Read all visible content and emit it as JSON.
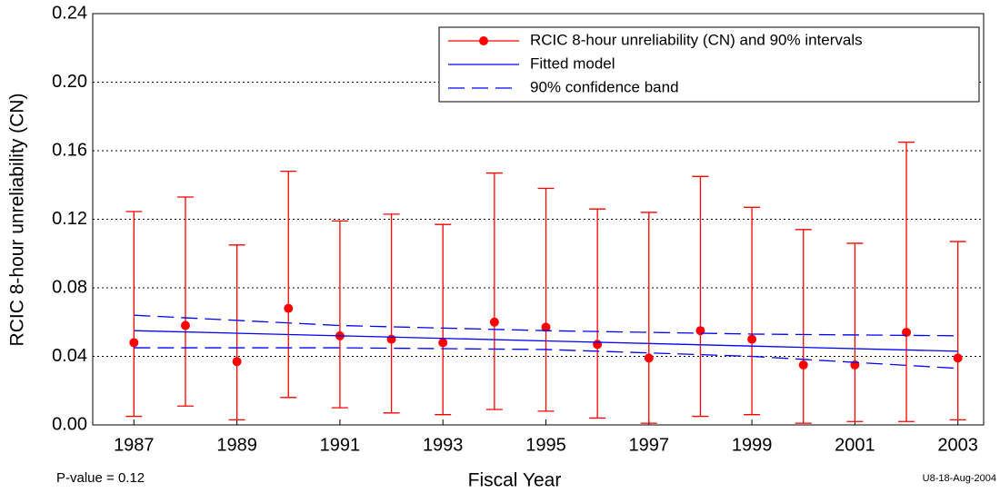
{
  "chart_data": {
    "type": "errorbar",
    "xlabel": "Fiscal Year",
    "ylabel": "RCIC 8-hour unreliability (CN)",
    "annotations": [
      "P-value = 0.12",
      "U8-18-Aug-2004"
    ],
    "xlim": [
      1986.2,
      2003.5
    ],
    "ylim": [
      0,
      0.24
    ],
    "xticks": [
      1987,
      1989,
      1991,
      1993,
      1995,
      1997,
      1999,
      2001,
      2003
    ],
    "yticks": [
      {
        "value": 0,
        "label": "0.00"
      },
      {
        "value": 0.04,
        "label": "0.04"
      },
      {
        "value": 0.08,
        "label": "0.08"
      },
      {
        "value": 0.12,
        "label": "0.12"
      },
      {
        "value": 0.16,
        "label": "0.16"
      },
      {
        "value": 0.2,
        "label": "0.20"
      },
      {
        "value": 0.24,
        "label": "0.24"
      }
    ],
    "grid": true,
    "legend": "top-right",
    "series": [
      {
        "name": "RCIC 8-hour unreliability (CN) and 90% intervals",
        "color": "#ff0000",
        "style": "points",
        "x": [
          1987,
          1988,
          1989,
          1990,
          1991,
          1992,
          1993,
          1994,
          1995,
          1996,
          1997,
          1998,
          1999,
          2000,
          2001,
          2002,
          2003
        ],
        "values": [
          0.048,
          0.058,
          0.037,
          0.068,
          0.052,
          0.05,
          0.048,
          0.06,
          0.057,
          0.047,
          0.039,
          0.055,
          0.05,
          0.035,
          0.035,
          0.054,
          0.039
        ],
        "lower": [
          0.005,
          0.011,
          0.003,
          0.016,
          0.01,
          0.007,
          0.006,
          0.009,
          0.008,
          0.004,
          0.001,
          0.005,
          0.006,
          0.001,
          0.002,
          0.002,
          0.003
        ],
        "upper": [
          0.1245,
          0.133,
          0.105,
          0.148,
          0.119,
          0.123,
          0.117,
          0.147,
          0.138,
          0.126,
          0.124,
          0.145,
          0.127,
          0.114,
          0.106,
          0.165,
          0.107
        ]
      },
      {
        "name": "Fitted model",
        "color": "#0000ff",
        "style": "solid",
        "x": [
          1987,
          1991,
          1995,
          1999,
          2003
        ],
        "values": [
          0.055,
          0.052,
          0.049,
          0.046,
          0.043
        ]
      },
      {
        "name": "90% confidence band",
        "color": "#0000ff",
        "style": "dashed",
        "x": [
          1987,
          1991,
          1995,
          1999,
          2003
        ],
        "values": [
          0.064,
          0.058,
          0.055,
          0.053,
          0.052
        ],
        "values2": [
          0.045,
          0.045,
          0.044,
          0.04,
          0.033
        ]
      }
    ]
  }
}
